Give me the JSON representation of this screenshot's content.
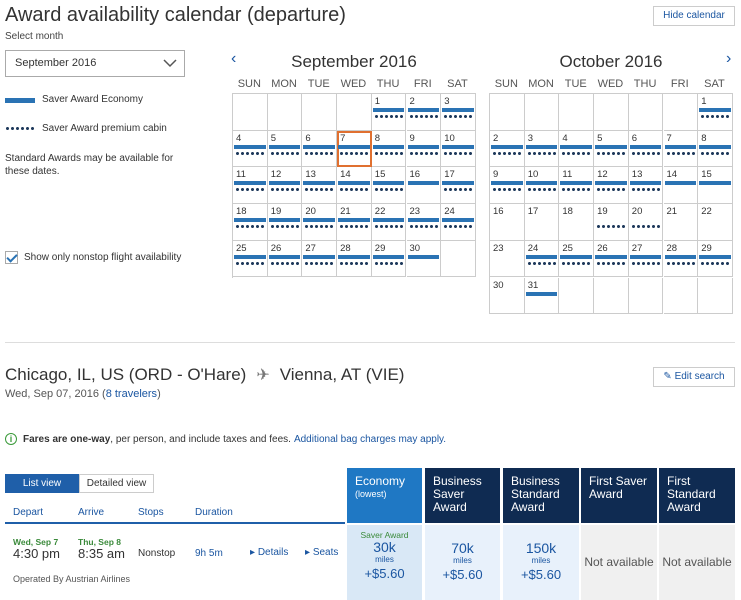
{
  "header": {
    "title": "Award availability calendar (departure)",
    "hide_calendar": "Hide calendar"
  },
  "month_select": {
    "label": "Select month",
    "value": "September 2016"
  },
  "legend": {
    "saver_economy": "Saver Award Economy",
    "saver_premium": "Saver Award premium cabin",
    "note": "Standard Awards may be available for these dates."
  },
  "nonstop_label": "Show only nonstop flight availability",
  "weekdays": [
    "SUN",
    "MON",
    "TUE",
    "WED",
    "THU",
    "FRI",
    "SAT"
  ],
  "calendars": [
    {
      "title": "September 2016",
      "start_offset": 4,
      "days": 30,
      "economy": [
        1,
        2,
        3,
        4,
        5,
        6,
        7,
        8,
        9,
        10,
        11,
        12,
        13,
        14,
        15,
        16,
        17,
        18,
        19,
        20,
        21,
        22,
        23,
        24,
        25,
        26,
        27,
        28,
        29,
        30
      ],
      "premium": [
        1,
        2,
        3,
        4,
        5,
        6,
        7,
        8,
        9,
        10,
        11,
        12,
        13,
        14,
        15,
        17,
        18,
        19,
        20,
        21,
        22,
        23,
        24,
        25,
        26,
        27,
        28,
        29
      ],
      "selected": 7
    },
    {
      "title": "October 2016",
      "start_offset": 6,
      "days": 31,
      "economy": [
        1,
        2,
        3,
        4,
        5,
        6,
        7,
        8,
        9,
        10,
        11,
        12,
        13,
        14,
        15,
        24,
        25,
        26,
        27,
        28,
        29,
        31
      ],
      "premium": [
        1,
        2,
        3,
        4,
        5,
        6,
        7,
        8,
        9,
        10,
        11,
        12,
        13,
        19,
        20,
        24,
        25,
        26,
        27,
        28,
        29
      ],
      "selected": null
    }
  ],
  "route": {
    "origin": "Chicago, IL, US (ORD - O'Hare)",
    "destination": "Vienna, AT (VIE)",
    "date": "Wed, Sep 07, 2016 (",
    "travelers": "8 travelers",
    "date_close": ")",
    "edit_search": "Edit search"
  },
  "fares_note": {
    "bold": "Fares are one-way",
    "rest": ", per person, and include taxes and fees.",
    "link": "Additional bag charges may apply."
  },
  "view_tabs": {
    "list": "List view",
    "detailed": "Detailed view"
  },
  "columns": {
    "depart": "Depart",
    "arrive": "Arrive",
    "stops": "Stops",
    "duration": "Duration"
  },
  "fare_columns": [
    {
      "title": "Economy",
      "sub": "(lowest)"
    },
    {
      "title": "Business Saver Award",
      "sub": ""
    },
    {
      "title": "Business Standard Award",
      "sub": ""
    },
    {
      "title": "First Saver Award",
      "sub": ""
    },
    {
      "title": "First Standard Award",
      "sub": ""
    }
  ],
  "flight": {
    "dep_date": "Wed, Sep 7",
    "arr_date": "Thu, Sep 8",
    "dep_time": "4:30 pm",
    "arr_time": "8:35 am",
    "stops": "Nonstop",
    "duration": "9h 5m",
    "details": "Details",
    "seats": "Seats",
    "operated": "Operated By Austrian Airlines",
    "fares": [
      {
        "award": "Saver Award",
        "miles": "30k",
        "unit": "miles",
        "tax": "+$5.60"
      },
      {
        "award": "",
        "miles": "70k",
        "unit": "miles",
        "tax": "+$5.60"
      },
      {
        "award": "",
        "miles": "150k",
        "unit": "miles",
        "tax": "+$5.60"
      },
      {
        "na": "Not available"
      },
      {
        "na": "Not available"
      }
    ]
  },
  "colors": {
    "brand_blue": "#1f5fa9",
    "economy_bar": "#2a73b4",
    "dark_navy": "#0f2b52",
    "selected_outline": "#e07030"
  }
}
